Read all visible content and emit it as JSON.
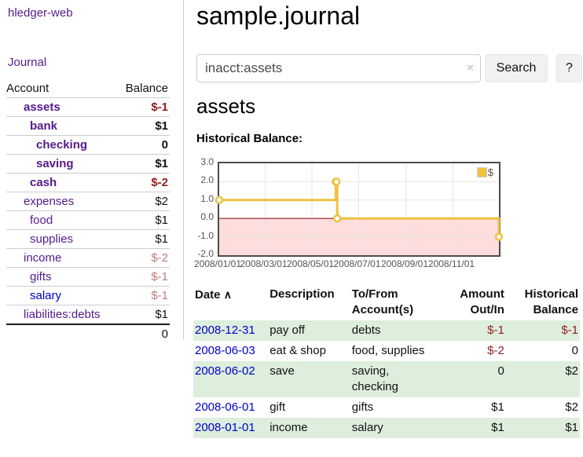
{
  "brand": "hledger-web",
  "sidebar": {
    "journal_label": "Journal",
    "accounts_header": {
      "account": "Account",
      "balance": "Balance"
    },
    "accounts": [
      {
        "name": "assets",
        "indent": 1,
        "bold": true,
        "balance": "$-1",
        "balance_class": "neg"
      },
      {
        "name": "bank",
        "indent": 2,
        "bold": true,
        "balance": "$1",
        "balance_class": ""
      },
      {
        "name": "checking",
        "indent": 3,
        "bold": true,
        "balance": "0",
        "balance_class": ""
      },
      {
        "name": "saving",
        "indent": 3,
        "bold": true,
        "balance": "$1",
        "balance_class": ""
      },
      {
        "name": "cash",
        "indent": 2,
        "bold": true,
        "balance": "$-2",
        "balance_class": "neg"
      },
      {
        "name": "expenses",
        "indent": 1,
        "bold": false,
        "balance": "$2",
        "balance_class": ""
      },
      {
        "name": "food",
        "indent": 2,
        "bold": false,
        "balance": "$1",
        "balance_class": ""
      },
      {
        "name": "supplies",
        "indent": 2,
        "bold": false,
        "balance": "$1",
        "balance_class": ""
      },
      {
        "name": "income",
        "indent": 1,
        "bold": false,
        "balance": "$-2",
        "balance_class": "dim"
      },
      {
        "name": "gifts",
        "indent": 2,
        "bold": false,
        "balance": "$-1",
        "balance_class": "dim"
      },
      {
        "name": "salary",
        "indent": 2,
        "bold": false,
        "balance": "$-1",
        "balance_class": "dim",
        "link_class": "blue"
      },
      {
        "name": "liabilities:debts",
        "indent": 1,
        "bold": false,
        "balance": "$1",
        "balance_class": ""
      }
    ],
    "total": "0"
  },
  "header": {
    "title": "sample.journal"
  },
  "search": {
    "value": "inacct:assets",
    "clear_icon": "×",
    "button_label": "Search",
    "help_label": "?"
  },
  "account_page": {
    "title": "assets",
    "chart_label": "Historical Balance:"
  },
  "chart_data": {
    "type": "line",
    "title": "Historical Balance:",
    "style": "step",
    "x_range": [
      "2008-01-01",
      "2008-12-31"
    ],
    "ylim": [
      -2,
      3
    ],
    "yticks": [
      "3.0",
      "2.0",
      "1.0",
      "0.0",
      "-1.0",
      "-2.0"
    ],
    "xticks": [
      "2008/01/01",
      "2008/03/01",
      "2008/05/01",
      "2008/07/01",
      "2008/09/01",
      "2008/11/01"
    ],
    "grid_color": "#e5e5e5",
    "negative_region": {
      "fill": "#ffdddd",
      "line": "#8b1a1a"
    },
    "legend_position": "top-right",
    "series": [
      {
        "name": "$",
        "color": "#edc240",
        "points": [
          {
            "date": "2008-01-01",
            "value": 1
          },
          {
            "date": "2008-06-01",
            "value": 2
          },
          {
            "date": "2008-06-02",
            "value": 2
          },
          {
            "date": "2008-06-03",
            "value": 0
          },
          {
            "date": "2008-12-31",
            "value": -1
          }
        ]
      }
    ]
  },
  "register": {
    "columns": {
      "date": "Date",
      "description": "Description",
      "accounts": "To/From Account(s)",
      "amount": "Amount Out/In",
      "balance": "Historical Balance"
    },
    "sort_icon": "∧",
    "rows": [
      {
        "date": "2008-12-31",
        "description": "pay off",
        "accounts": "debts",
        "amount": "$-1",
        "amount_class": "neg",
        "balance": "$-1",
        "balance_class": "neg"
      },
      {
        "date": "2008-06-03",
        "description": "eat & shop",
        "accounts": "food, supplies",
        "amount": "$-2",
        "amount_class": "neg",
        "balance": "0",
        "balance_class": ""
      },
      {
        "date": "2008-06-02",
        "description": "save",
        "accounts": "saving, checking",
        "amount": "0",
        "amount_class": "",
        "balance": "$2",
        "balance_class": ""
      },
      {
        "date": "2008-06-01",
        "description": "gift",
        "accounts": "gifts",
        "amount": "$1",
        "amount_class": "",
        "balance": "$2",
        "balance_class": ""
      },
      {
        "date": "2008-01-01",
        "description": "income",
        "accounts": "salary",
        "amount": "$1",
        "amount_class": "",
        "balance": "$1",
        "balance_class": ""
      }
    ]
  }
}
